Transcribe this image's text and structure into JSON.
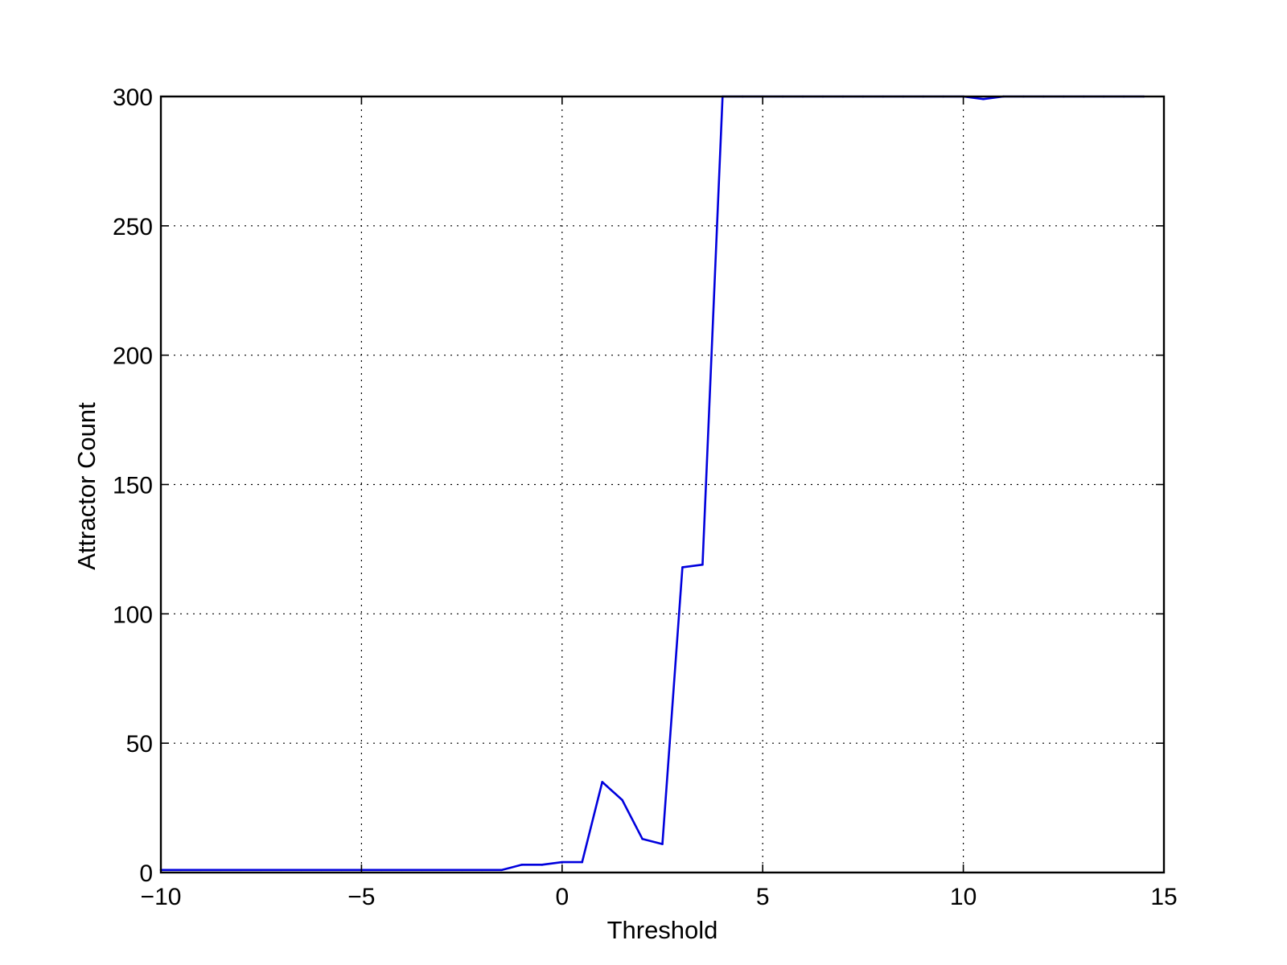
{
  "chart_data": {
    "type": "line",
    "title": "",
    "xlabel": "Threshold",
    "ylabel": "Attractor Count",
    "xlim": [
      -10,
      15
    ],
    "ylim": [
      0,
      300
    ],
    "xticks": [
      -10,
      -5,
      0,
      5,
      10,
      15
    ],
    "xtick_labels": [
      "−10",
      "−5",
      "0",
      "5",
      "10",
      "15"
    ],
    "yticks": [
      0,
      50,
      100,
      150,
      200,
      250,
      300
    ],
    "ytick_labels": [
      "0",
      "50",
      "100",
      "150",
      "200",
      "250",
      "300"
    ],
    "grid": true,
    "legend": "none",
    "series": [
      {
        "color": "#0000dd",
        "x": [
          -10,
          -9.5,
          -9,
          -8.5,
          -8,
          -7.5,
          -7,
          -6.5,
          -6,
          -5.5,
          -5,
          -4.5,
          -4,
          -3.5,
          -3,
          -2.5,
          -2,
          -1.5,
          -1,
          -0.5,
          0,
          0.5,
          1,
          1.5,
          2,
          2.5,
          3,
          3.5,
          4,
          4.5,
          5,
          5.5,
          6,
          6.5,
          7,
          7.5,
          8,
          8.5,
          9,
          9.5,
          10,
          10.5,
          11,
          11.5,
          12,
          12.5,
          13,
          13.5,
          14,
          14.5
        ],
        "y": [
          1,
          1,
          1,
          1,
          1,
          1,
          1,
          1,
          1,
          1,
          1,
          1,
          1,
          1,
          1,
          1,
          1,
          1,
          3,
          3,
          4,
          4,
          35,
          28,
          13,
          11,
          118,
          119,
          300,
          300,
          300,
          300,
          300,
          300,
          300,
          300,
          300,
          300,
          300,
          300,
          300,
          299,
          300,
          300,
          300,
          300,
          300,
          300,
          300,
          300
        ]
      }
    ]
  }
}
